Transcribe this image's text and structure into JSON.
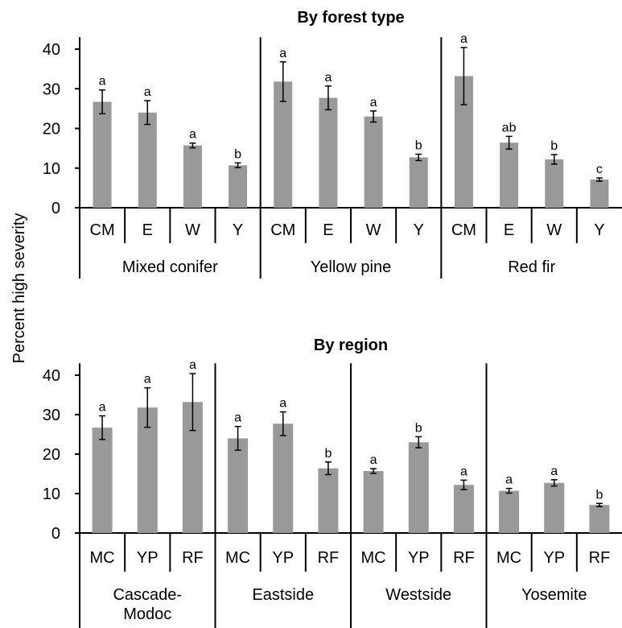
{
  "figure": {
    "ylabel": "Percent high severity",
    "colors": {
      "bar": "#999999",
      "axis": "#000000",
      "text": "#000000"
    }
  },
  "chart_data": [
    {
      "type": "bar",
      "title": "By forest type",
      "ylabel": "Percent high severity",
      "ylim": [
        0,
        43
      ],
      "yticks": [
        0,
        10,
        20,
        30,
        40
      ],
      "grid": false,
      "error_bars": true,
      "groups": [
        {
          "name": "Mixed conifer",
          "categories": [
            "CM",
            "E",
            "W",
            "Y"
          ],
          "values": [
            26.7,
            24.0,
            15.7,
            10.7
          ],
          "errors": [
            3.0,
            3.0,
            0.6,
            0.6
          ],
          "letters": [
            "a",
            "a",
            "a",
            "b"
          ]
        },
        {
          "name": "Yellow pine",
          "categories": [
            "CM",
            "E",
            "W",
            "Y"
          ],
          "values": [
            31.8,
            27.7,
            23.0,
            12.7
          ],
          "errors": [
            5.0,
            3.0,
            1.4,
            0.8
          ],
          "letters": [
            "a",
            "a",
            "a",
            "b"
          ]
        },
        {
          "name": "Red fir",
          "categories": [
            "CM",
            "E",
            "W",
            "Y"
          ],
          "values": [
            33.2,
            16.4,
            12.2,
            7.1
          ],
          "errors": [
            7.2,
            1.6,
            1.2,
            0.4
          ],
          "letters": [
            "a",
            "ab",
            "b",
            "c"
          ]
        }
      ]
    },
    {
      "type": "bar",
      "title": "By region",
      "ylabel": "Percent high severity",
      "ylim": [
        0,
        43
      ],
      "yticks": [
        0,
        10,
        20,
        30,
        40
      ],
      "grid": false,
      "error_bars": true,
      "groups": [
        {
          "name": "Cascade-\nModoc",
          "categories": [
            "MC",
            "YP",
            "RF"
          ],
          "values": [
            26.7,
            31.8,
            33.2
          ],
          "errors": [
            3.0,
            5.0,
            7.2
          ],
          "letters": [
            "a",
            "a",
            "a"
          ]
        },
        {
          "name": "Eastside",
          "categories": [
            "MC",
            "YP",
            "RF"
          ],
          "values": [
            24.0,
            27.7,
            16.4
          ],
          "errors": [
            3.0,
            3.0,
            1.6
          ],
          "letters": [
            "a",
            "a",
            "b"
          ]
        },
        {
          "name": "Westside",
          "categories": [
            "MC",
            "YP",
            "RF"
          ],
          "values": [
            15.7,
            23.0,
            12.2
          ],
          "errors": [
            0.6,
            1.4,
            1.2
          ],
          "letters": [
            "a",
            "b",
            "a"
          ]
        },
        {
          "name": "Yosemite",
          "categories": [
            "MC",
            "YP",
            "RF"
          ],
          "values": [
            10.7,
            12.7,
            7.1
          ],
          "errors": [
            0.6,
            0.8,
            0.4
          ],
          "letters": [
            "a",
            "a",
            "b"
          ]
        }
      ]
    }
  ]
}
